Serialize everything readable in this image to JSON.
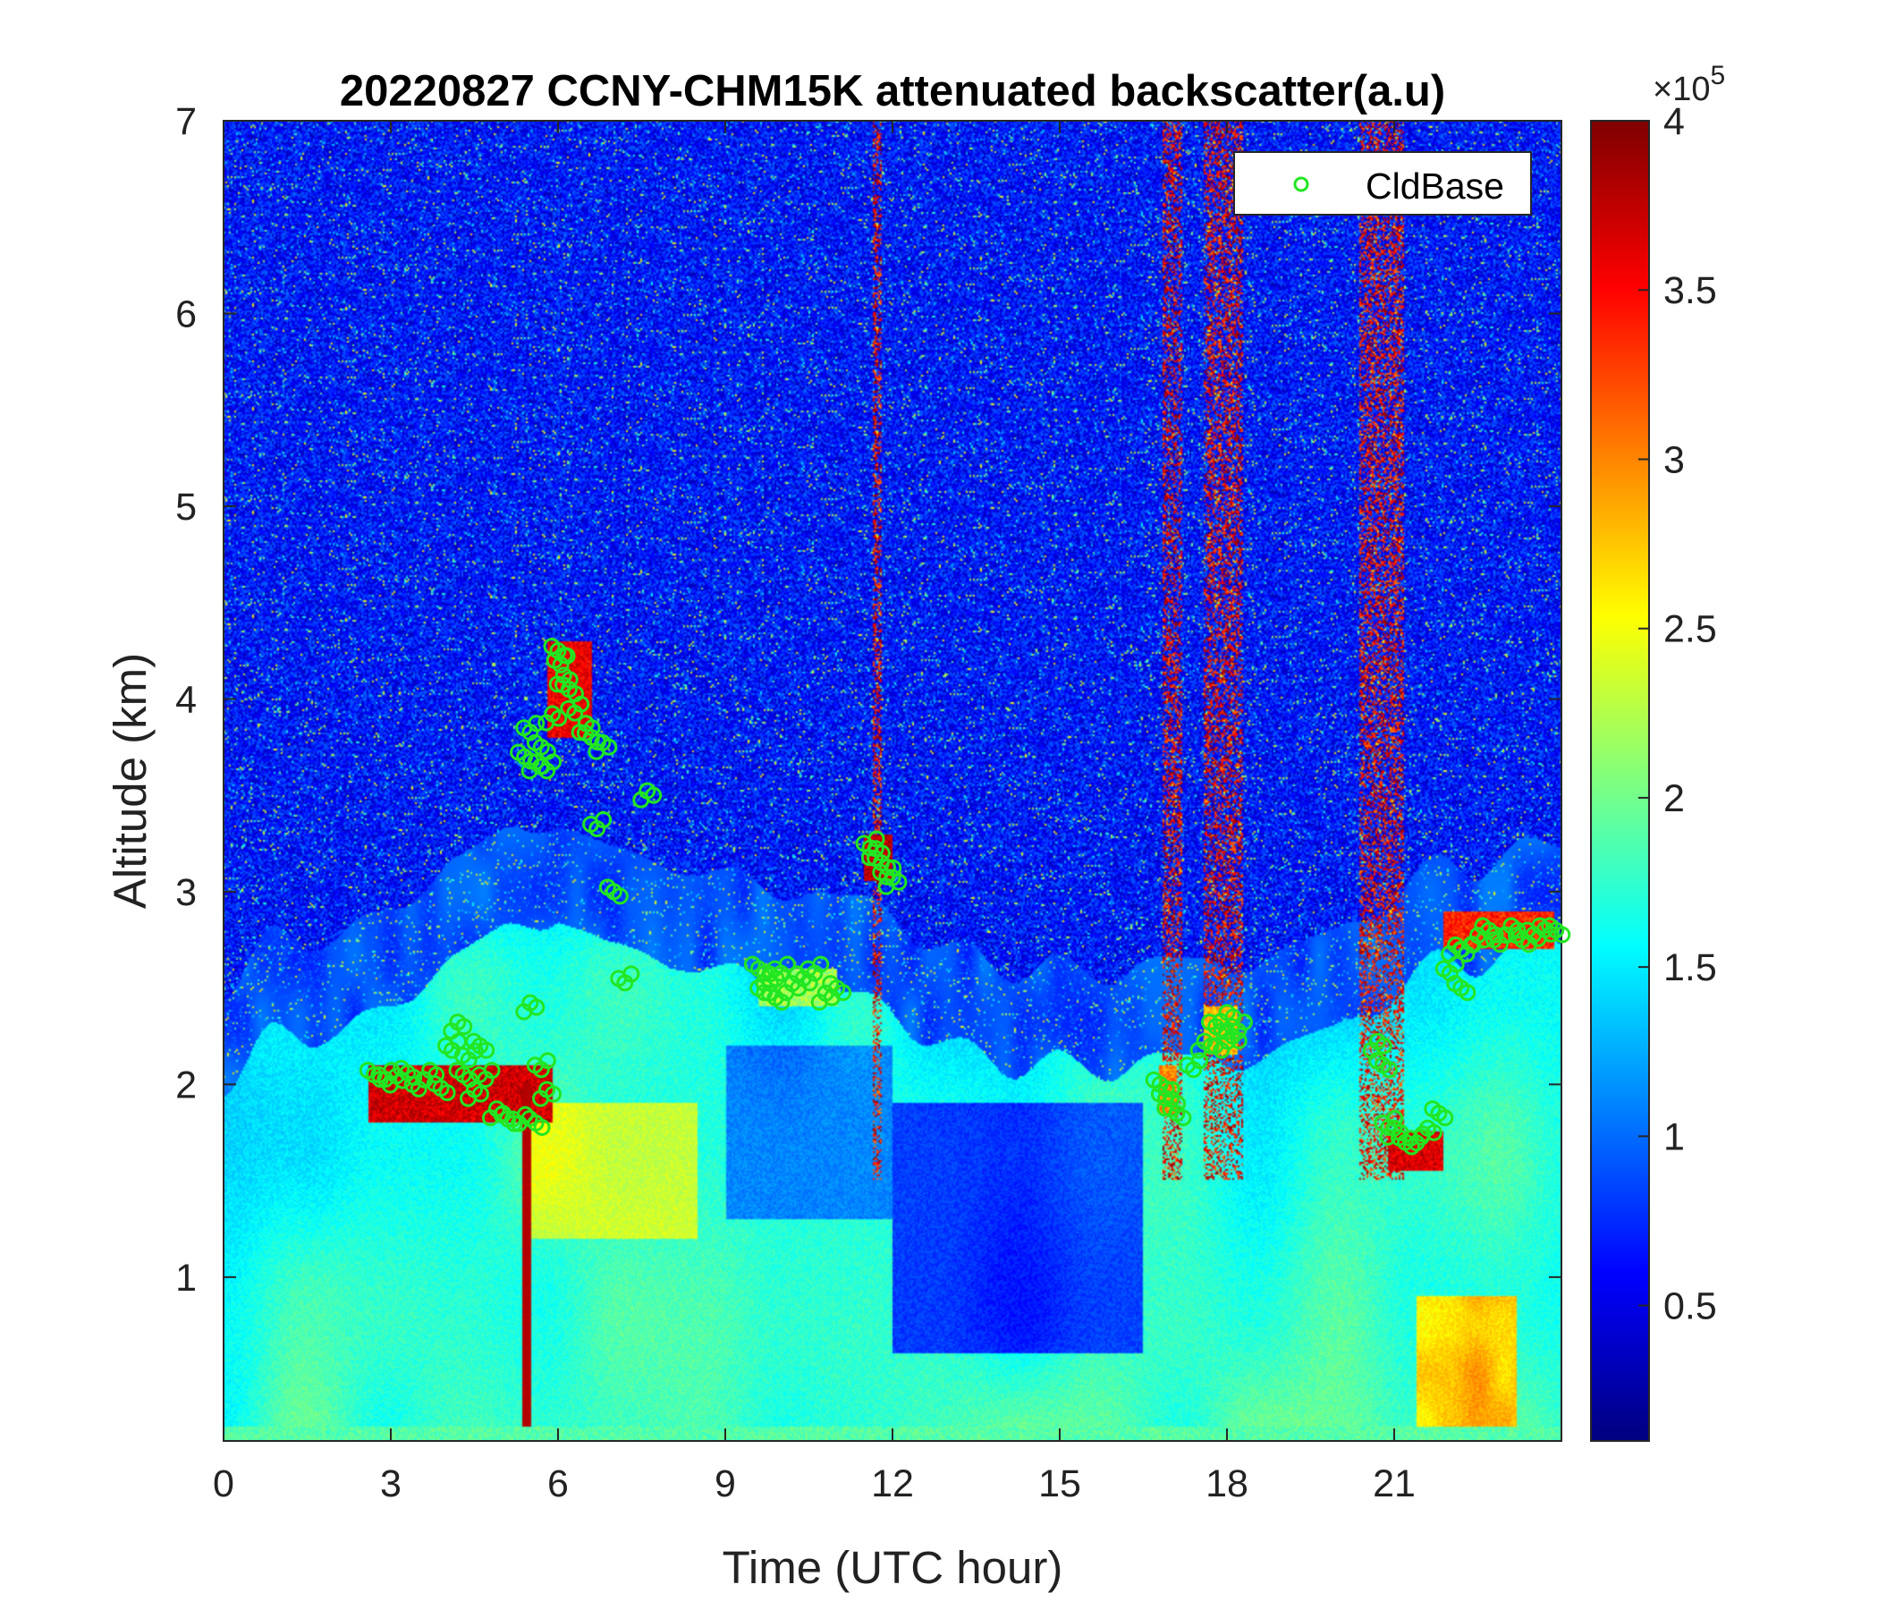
{
  "chart_data": {
    "type": "heatmap",
    "title": "20220827 CCNY-CHM15K attenuated backscatter(a.u)",
    "xlabel": "Time (UTC hour)",
    "ylabel": "Altitude (km)",
    "xlim": [
      0,
      24
    ],
    "ylim": [
      0.15,
      7
    ],
    "x_ticks": [
      "0",
      "3",
      "6",
      "9",
      "12",
      "15",
      "18",
      "21"
    ],
    "x_tick_values": [
      0,
      3,
      6,
      9,
      12,
      15,
      18,
      21
    ],
    "y_ticks": [
      "1",
      "2",
      "3",
      "4",
      "5",
      "6",
      "7"
    ],
    "y_tick_values": [
      1,
      2,
      3,
      4,
      5,
      6,
      7
    ],
    "colorbar": {
      "colormap": "jet",
      "range": [
        0.1,
        4
      ],
      "ticks": [
        "0.5",
        "1",
        "1.5",
        "2",
        "2.5",
        "3",
        "3.5",
        "4"
      ],
      "tick_values": [
        0.5,
        1,
        1.5,
        2,
        2.5,
        3,
        3.5,
        4
      ],
      "exponent_label": "×10",
      "exponent": "5"
    },
    "legend": {
      "position": "top-right",
      "entries": [
        "CldBase"
      ]
    },
    "series": [
      {
        "name": "CldBase",
        "marker": "circle",
        "color": "#22e622",
        "x": [
          2.7,
          2.9,
          3.1,
          3.3,
          3.5,
          3.7,
          3.9,
          4.1,
          4.2,
          4.3,
          4.4,
          4.5,
          4.6,
          4.7,
          4.9,
          5.1,
          5.3,
          5.5,
          5.6,
          5.7,
          5.8,
          5.4,
          5.5,
          5.6,
          5.7,
          5.8,
          5.9,
          6.0,
          6.05,
          6.1,
          6.2,
          6.3,
          6.5,
          6.6,
          6.7,
          6.8,
          7.0,
          7.2,
          7.6,
          9.6,
          9.7,
          9.8,
          9.9,
          10.0,
          10.2,
          10.4,
          10.6,
          10.8,
          11.0,
          11.6,
          11.7,
          11.8,
          11.9,
          12.0,
          16.8,
          16.9,
          17.0,
          17.1,
          17.4,
          17.6,
          17.8,
          17.9,
          18.0,
          18.1,
          18.2,
          20.7,
          20.8,
          20.9,
          21.0,
          21.2,
          21.4,
          21.6,
          21.8,
          22.0,
          22.1,
          22.2,
          22.3,
          22.5,
          22.7,
          22.9,
          23.1,
          23.3,
          23.5,
          23.7,
          23.9
        ],
        "y": [
          2.05,
          2.05,
          2.02,
          2.06,
          2.0,
          2.05,
          1.98,
          2.2,
          2.3,
          2.05,
          2.15,
          1.95,
          2.2,
          2.05,
          1.85,
          1.82,
          1.82,
          2.4,
          1.8,
          2.1,
          1.95,
          3.7,
          3.85,
          3.65,
          3.75,
          3.65,
          3.9,
          4.25,
          4.2,
          4.1,
          4.05,
          3.95,
          3.85,
          3.8,
          3.35,
          3.75,
          3.0,
          2.55,
          3.5,
          2.6,
          2.5,
          2.55,
          2.45,
          2.6,
          2.5,
          2.55,
          2.6,
          2.45,
          2.5,
          3.25,
          3.2,
          3.15,
          3.1,
          3.05,
          2.0,
          1.95,
          1.9,
          1.85,
          2.1,
          2.2,
          2.3,
          2.2,
          2.35,
          2.25,
          2.3,
          2.2,
          2.1,
          1.8,
          1.75,
          1.7,
          1.72,
          1.75,
          1.85,
          2.6,
          2.7,
          2.5,
          2.7,
          2.75,
          2.8,
          2.75,
          2.8,
          2.75,
          2.8,
          2.78,
          2.8
        ]
      }
    ]
  }
}
